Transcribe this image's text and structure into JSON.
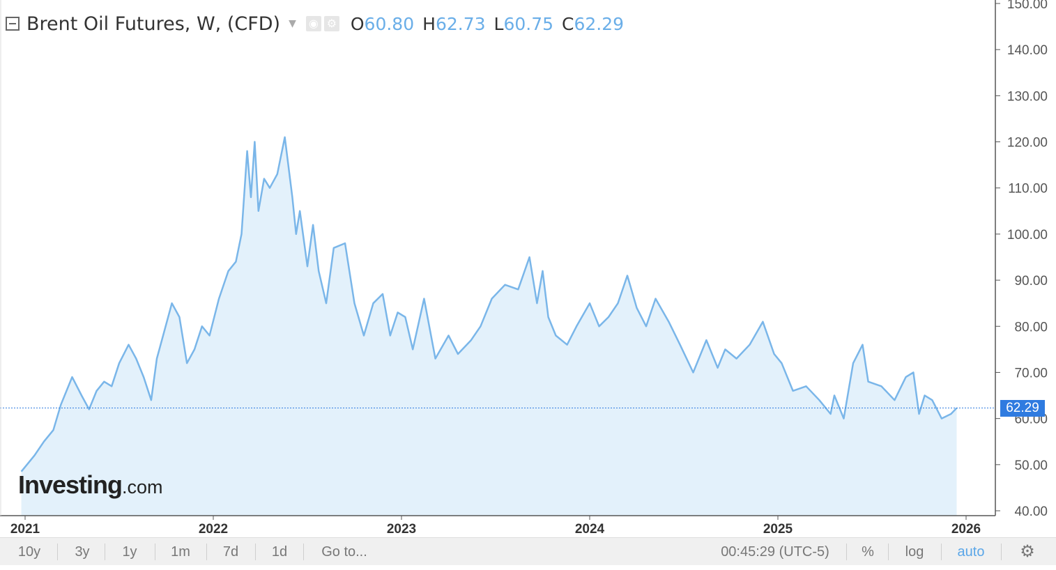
{
  "header": {
    "title": "Brent Oil Futures, W, (CFD)",
    "open_label": "O",
    "open": "60.80",
    "high_label": "H",
    "high": "62.73",
    "low_label": "L",
    "low": "60.75",
    "close_label": "C",
    "close": "62.29"
  },
  "logo": {
    "main": "Investing",
    "sub": ".com"
  },
  "toolbar": {
    "ranges": [
      "10y",
      "3y",
      "1y",
      "1m",
      "7d",
      "1d"
    ],
    "goto": "Go to...",
    "time": "00:45:29 (UTC-5)",
    "percent": "%",
    "log": "log",
    "auto": "auto"
  },
  "colors": {
    "line": "#7ab6e9",
    "fill": "#e3f1fb",
    "price_tag": "#2f7be0",
    "accent": "#5aa6e8"
  },
  "chart_data": {
    "type": "area",
    "x_tick_labels": [
      "2021",
      "2022",
      "2023",
      "2024",
      "2025",
      "2026"
    ],
    "y_tick_labels": [
      "40.00",
      "50.00",
      "60.00",
      "70.00",
      "80.00",
      "90.00",
      "100.00",
      "110.00",
      "120.00",
      "130.00",
      "140.00",
      "150.00"
    ],
    "ylim": [
      40,
      150
    ],
    "xlim": [
      2021,
      2026
    ],
    "current_price": "62.29",
    "grid": false,
    "series": [
      {
        "x": [
          2020.98,
          2021.05,
          2021.1,
          2021.15,
          2021.19,
          2021.25,
          2021.3,
          2021.34,
          2021.38,
          2021.42,
          2021.46,
          2021.5,
          2021.55,
          2021.59,
          2021.63,
          2021.67,
          2021.7,
          2021.74,
          2021.78,
          2021.82,
          2021.86,
          2021.9,
          2021.94,
          2021.98,
          2022.03,
          2022.08,
          2022.12,
          2022.15,
          2022.18,
          2022.2,
          2022.22,
          2022.24,
          2022.27,
          2022.3,
          2022.34,
          2022.38,
          2022.42,
          2022.44,
          2022.46,
          2022.5,
          2022.53,
          2022.56,
          2022.6,
          2022.64,
          2022.7,
          2022.75,
          2022.8,
          2022.85,
          2022.9,
          2022.94,
          2022.98,
          2023.02,
          2023.06,
          2023.12,
          2023.18,
          2023.25,
          2023.3,
          2023.37,
          2023.42,
          2023.48,
          2023.55,
          2023.62,
          2023.68,
          2023.72,
          2023.75,
          2023.78,
          2023.82,
          2023.88,
          2023.93,
          2024.0,
          2024.05,
          2024.1,
          2024.15,
          2024.2,
          2024.25,
          2024.3,
          2024.35,
          2024.42,
          2024.48,
          2024.55,
          2024.62,
          2024.68,
          2024.72,
          2024.78,
          2024.85,
          2024.92,
          2024.98,
          2025.02,
          2025.08,
          2025.15,
          2025.22,
          2025.28,
          2025.3,
          2025.35,
          2025.4,
          2025.45,
          2025.48,
          2025.55,
          2025.62,
          2025.68,
          2025.72,
          2025.75,
          2025.78,
          2025.82,
          2025.87,
          2025.92,
          2025.95
        ],
        "y": [
          48.5,
          52,
          55,
          57.5,
          63,
          69,
          65,
          62,
          66,
          68,
          67,
          72,
          76,
          73,
          69,
          64,
          73,
          79,
          85,
          82,
          72,
          75,
          80,
          78,
          86,
          92,
          94,
          100,
          118,
          108,
          120,
          105,
          112,
          110,
          113,
          121,
          108,
          100,
          105,
          93,
          102,
          92,
          85,
          97,
          98,
          85,
          78,
          85,
          87,
          78,
          83,
          82,
          75,
          86,
          73,
          78,
          74,
          77,
          80,
          86,
          89,
          88,
          95,
          85,
          92,
          82,
          78,
          76,
          80,
          85,
          80,
          82,
          85,
          91,
          84,
          80,
          86,
          81,
          76,
          70,
          77,
          71,
          75,
          73,
          76,
          81,
          74,
          72,
          66,
          67,
          64,
          61,
          65,
          60,
          72,
          76,
          68,
          67,
          64,
          69,
          70,
          61,
          65,
          64,
          60,
          61,
          62.29
        ]
      }
    ]
  }
}
